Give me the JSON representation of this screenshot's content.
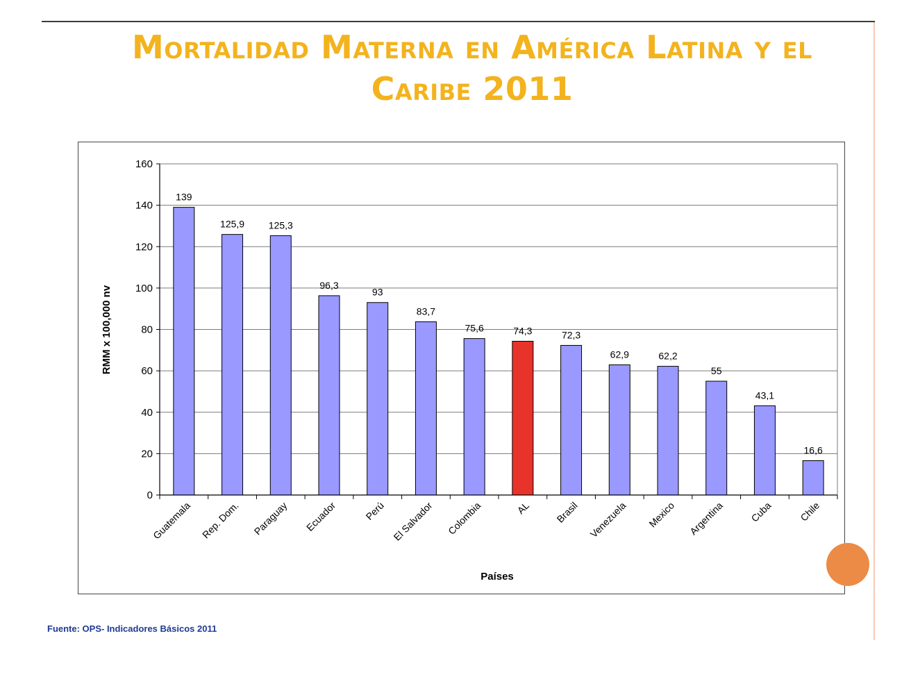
{
  "slide": {
    "title_line1": "Mortalidad Materna en América Latina y el",
    "title_line2": "Caribe 2011",
    "source": "Fuente: OPS- Indicadores Básicos 2011"
  },
  "colors": {
    "title": "#f3b31e",
    "bar": "#9999ff",
    "highlight_bar": "#e8332a",
    "source_text": "#1f3a93",
    "accent_circle": "#ec8b45"
  },
  "chart_data": {
    "type": "bar",
    "title": "",
    "xlabel": "Países",
    "ylabel": "RMM x 100,000 nv",
    "ylim": [
      0,
      160
    ],
    "yticks": [
      0,
      20,
      40,
      60,
      80,
      100,
      120,
      140,
      160
    ],
    "grid": true,
    "categories": [
      "Guatemala",
      "Rep. Dom.",
      "Paraguay",
      "Ecuador",
      "Perú",
      "El Salvador",
      "Colombia",
      "AL",
      "Brasil",
      "Venezuela",
      "Mexico",
      "Argentina",
      "Cuba",
      "Chile"
    ],
    "values": [
      139,
      125.9,
      125.3,
      96.3,
      93,
      83.7,
      75.6,
      74.3,
      72.3,
      62.9,
      62.2,
      55,
      43.1,
      16.6
    ],
    "value_labels": [
      "139",
      "125,9",
      "125,3",
      "96,3",
      "93",
      "83,7",
      "75,6",
      "74,3",
      "72,3",
      "62,9",
      "62,2",
      "55",
      "43,1",
      "16,6"
    ],
    "highlight_category": "AL"
  }
}
